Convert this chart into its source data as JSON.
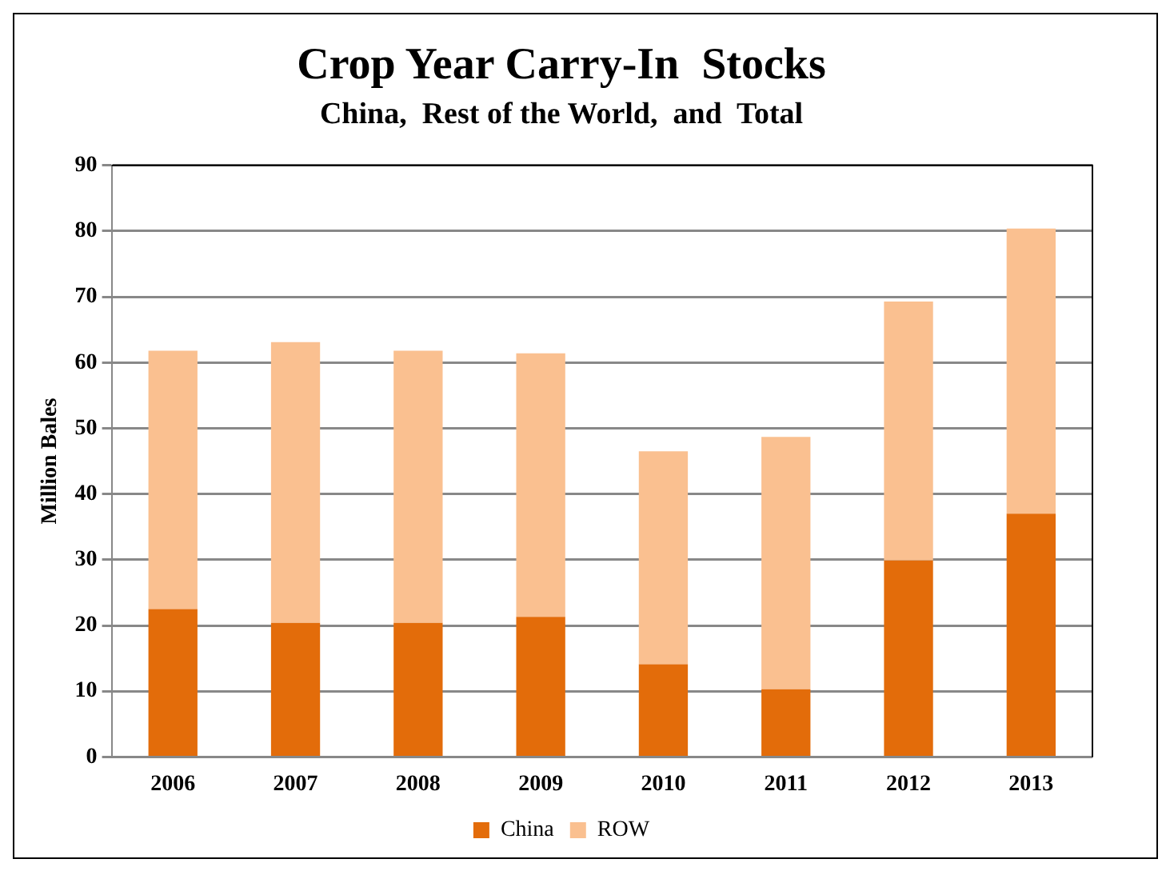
{
  "chart_data": {
    "type": "bar",
    "title": "Crop Year Carry-In  Stocks",
    "subtitle": "China,  Rest of the World,  and  Total",
    "ylabel": "Million Bales",
    "categories": [
      "2006",
      "2007",
      "2008",
      "2009",
      "2010",
      "2011",
      "2012",
      "2013"
    ],
    "series": [
      {
        "name": "China",
        "color": "#e36c0a",
        "values": [
          22.5,
          20.4,
          20.4,
          21.3,
          14.1,
          10.3,
          29.9,
          37.0
        ]
      },
      {
        "name": "ROW",
        "color": "#fac090",
        "values": [
          39.3,
          42.7,
          41.4,
          40.1,
          32.4,
          38.4,
          39.4,
          43.4
        ]
      }
    ],
    "stacked": true,
    "ylim": [
      0,
      90
    ],
    "yticks": [
      0,
      10,
      20,
      30,
      40,
      50,
      60,
      70,
      80,
      90
    ],
    "grid": "y",
    "legend": "bottom"
  }
}
